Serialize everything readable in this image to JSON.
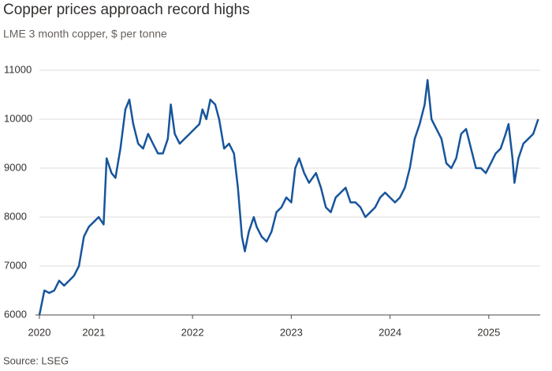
{
  "chart_data": {
    "type": "line",
    "title": "Copper prices approach record highs",
    "subtitle": "LME 3 month copper, $ per tonne",
    "source": "Source: LSEG",
    "x": [
      2020.45,
      2020.5,
      2020.55,
      2020.6,
      2020.65,
      2020.7,
      2020.75,
      2020.8,
      2020.85,
      2020.9,
      2020.95,
      2021.0,
      2021.05,
      2021.1,
      2021.13,
      2021.18,
      2021.22,
      2021.27,
      2021.32,
      2021.36,
      2021.4,
      2021.45,
      2021.5,
      2021.55,
      2021.6,
      2021.65,
      2021.7,
      2021.75,
      2021.78,
      2021.82,
      2021.87,
      2021.92,
      2021.97,
      2022.02,
      2022.07,
      2022.1,
      2022.14,
      2022.18,
      2022.23,
      2022.27,
      2022.32,
      2022.37,
      2022.42,
      2022.46,
      2022.5,
      2022.53,
      2022.57,
      2022.62,
      2022.65,
      2022.7,
      2022.75,
      2022.8,
      2022.85,
      2022.9,
      2022.95,
      2023.0,
      2023.04,
      2023.08,
      2023.13,
      2023.18,
      2023.25,
      2023.3,
      2023.35,
      2023.4,
      2023.45,
      2023.5,
      2023.55,
      2023.6,
      2023.65,
      2023.7,
      2023.75,
      2023.8,
      2023.85,
      2023.9,
      2023.95,
      2024.0,
      2024.05,
      2024.1,
      2024.15,
      2024.2,
      2024.25,
      2024.3,
      2024.35,
      2024.38,
      2024.42,
      2024.47,
      2024.52,
      2024.57,
      2024.62,
      2024.67,
      2024.72,
      2024.77,
      2024.82,
      2024.87,
      2024.92,
      2024.97,
      2025.02,
      2025.07,
      2025.12,
      2025.17,
      2025.2,
      2025.24,
      2025.26,
      2025.3,
      2025.35,
      2025.4,
      2025.45,
      2025.5
    ],
    "series": [
      {
        "color": "#17559c",
        "values": [
          6000,
          6500,
          6450,
          6500,
          6700,
          6600,
          6700,
          6800,
          7000,
          7600,
          7800,
          7900,
          8000,
          7850,
          9200,
          8900,
          8800,
          9400,
          10200,
          10400,
          9900,
          9500,
          9400,
          9700,
          9500,
          9300,
          9300,
          9600,
          10300,
          9700,
          9500,
          9600,
          9700,
          9800,
          9900,
          10200,
          10000,
          10400,
          10300,
          10000,
          9400,
          9500,
          9300,
          8600,
          7600,
          7300,
          7700,
          8000,
          7800,
          7600,
          7500,
          7700,
          8100,
          8200,
          8400,
          8300,
          9000,
          9200,
          8900,
          8700,
          8900,
          8600,
          8200,
          8100,
          8400,
          8500,
          8600,
          8300,
          8300,
          8200,
          8000,
          8100,
          8200,
          8400,
          8500,
          8400,
          8300,
          8400,
          8600,
          9000,
          9600,
          9900,
          10300,
          10800,
          10000,
          9800,
          9600,
          9100,
          9000,
          9200,
          9700,
          9800,
          9400,
          9000,
          9000,
          8900,
          9100,
          9300,
          9400,
          9700,
          9900,
          9200,
          8700,
          9200,
          9500,
          9600,
          9700,
          10000
        ]
      }
    ],
    "xlim": [
      2020.45,
      2025.52
    ],
    "xticks": [
      {
        "value": 2020.45,
        "label": "2020"
      },
      2021,
      2022,
      2023,
      2024,
      2025
    ],
    "ylim": [
      6000,
      11000
    ],
    "yticks": [
      6000,
      7000,
      8000,
      9000,
      10000,
      11000
    ],
    "grid": true
  }
}
